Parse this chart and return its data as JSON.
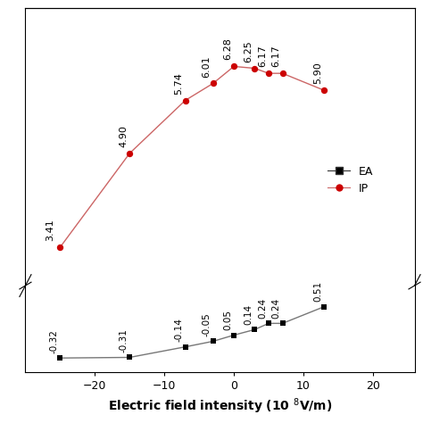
{
  "x_values": [
    -25,
    -15,
    -7,
    -3,
    0,
    3,
    5,
    7,
    13
  ],
  "ip_values": [
    3.41,
    4.9,
    5.74,
    6.01,
    6.28,
    6.25,
    6.17,
    6.17,
    5.9
  ],
  "ea_values": [
    -0.32,
    -0.31,
    -0.14,
    -0.05,
    0.05,
    0.14,
    0.24,
    0.24,
    0.51
  ],
  "ip_labels": [
    "3.41",
    "4.90",
    "5.74",
    "6.01",
    "6.28",
    "6.25",
    "6.17",
    "6.17",
    "5.90"
  ],
  "ea_labels": [
    "-0.32",
    "-0.31",
    "-0.14",
    "-0.05",
    "0.05",
    "0.14",
    "0.24",
    "0.24",
    "0.51"
  ],
  "ip_color": "#cc0000",
  "ea_color": "#333333",
  "line_color_ip": "#cc6666",
  "line_color_ea": "#777777",
  "xlabel": "Electric field intensity (10 $^{8}$V/m)",
  "xlim": [
    -30,
    26
  ],
  "ip_ylim": [
    2.8,
    7.2
  ],
  "ea_ylim": [
    -0.55,
    0.85
  ],
  "xticks": [
    -20,
    -10,
    0,
    10,
    20
  ],
  "ip_yticks": [],
  "background": "#ffffff"
}
